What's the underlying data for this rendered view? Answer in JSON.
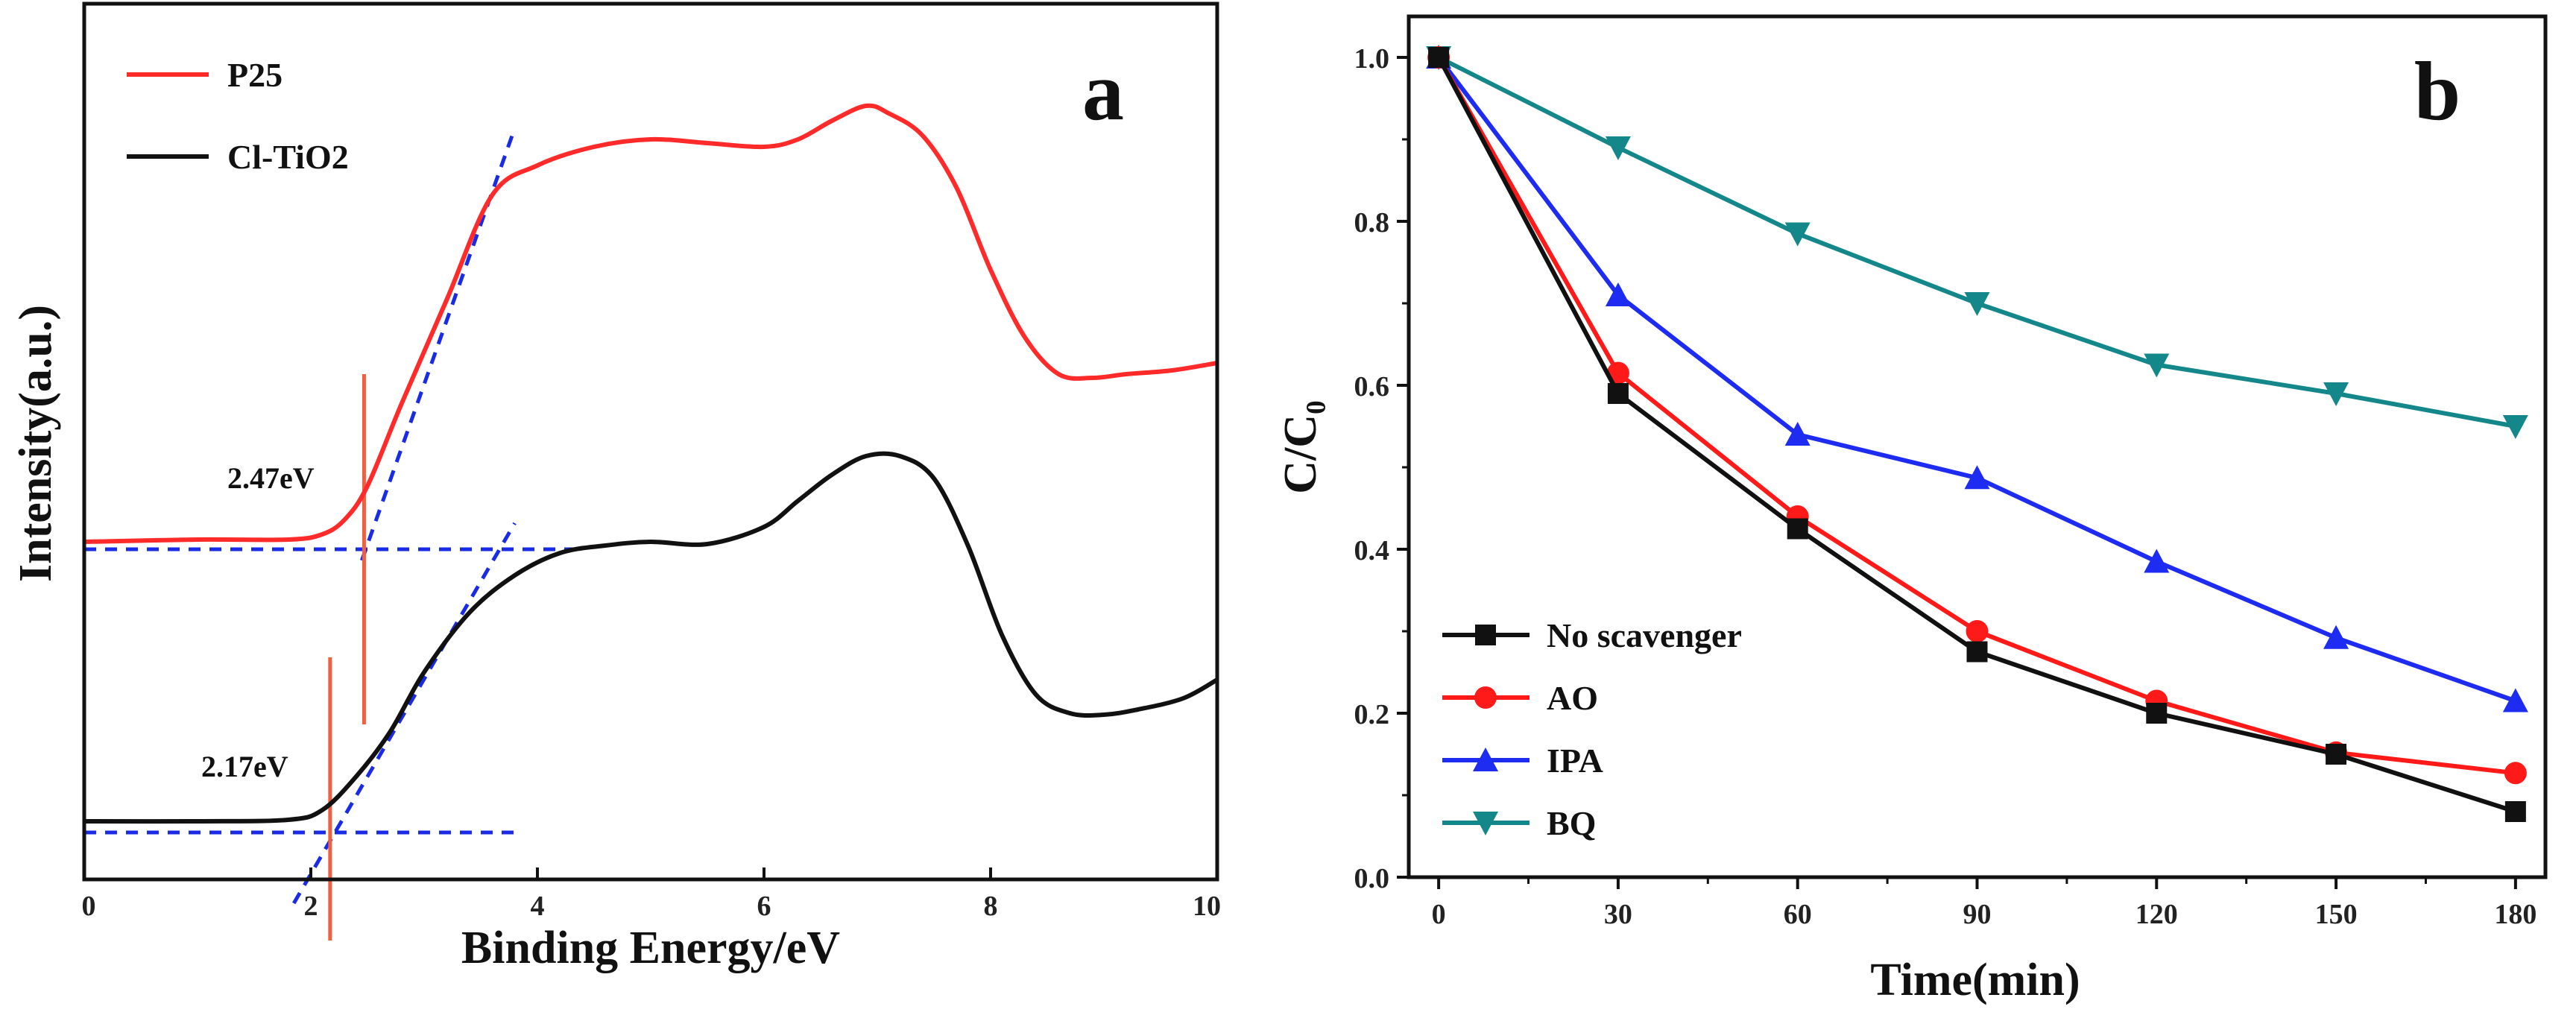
{
  "chart_data": [
    {
      "type": "line",
      "panel_label": "a",
      "title": "",
      "xlabel": "Binding Energy/eV",
      "ylabel": "Intensity(a.u.)",
      "xlim": [
        0,
        10
      ],
      "ylim": [
        0,
        100
      ],
      "xticks": [
        "0",
        "2",
        "4",
        "6",
        "8",
        "10"
      ],
      "y_ticks_shown": false,
      "legend": {
        "placement": "top-left"
      },
      "series": [
        {
          "name": "P25",
          "color": "#ff2a2a",
          "x": [
            0,
            1,
            1.8,
            2.1,
            2.3,
            2.5,
            2.8,
            3.2,
            3.6,
            4.0,
            4.5,
            5.0,
            5.5,
            6.0,
            6.3,
            6.6,
            6.9,
            7.1,
            7.4,
            7.7,
            8.0,
            8.3,
            8.6,
            8.9,
            9.2,
            9.6,
            10
          ],
          "y": [
            41.5,
            41.8,
            41.8,
            42.5,
            44.5,
            49,
            60,
            74,
            88,
            92,
            94.5,
            95.5,
            95,
            94.5,
            95.5,
            98,
            100,
            99,
            96,
            89,
            78,
            69,
            64,
            63.5,
            64,
            64.5,
            65.5
          ]
        },
        {
          "name": "Cl-TiO2",
          "color": "#111111",
          "x": [
            0,
            1,
            1.8,
            2.1,
            2.4,
            2.7,
            3.0,
            3.4,
            3.8,
            4.2,
            4.6,
            5.0,
            5.5,
            6.0,
            6.3,
            6.6,
            6.9,
            7.2,
            7.5,
            7.8,
            8.1,
            8.4,
            8.7,
            9.0,
            9.3,
            9.7,
            10
          ],
          "y": [
            4,
            4,
            4.2,
            5.5,
            10,
            16,
            24,
            32,
            37,
            40,
            41,
            41.5,
            41.2,
            43.5,
            47,
            50.5,
            53,
            53,
            50,
            41,
            29,
            21,
            18.5,
            18.3,
            19,
            20.5,
            23
          ]
        }
      ],
      "annotations": [
        {
          "text": "2.47eV",
          "x": 2.47
        },
        {
          "text": "2.17eV",
          "x": 2.17
        }
      ],
      "guide_lines": {
        "tangent_p25": [
          [
            2.45,
            39
          ],
          [
            3.8,
            97
          ]
        ],
        "baseline_p25": [
          [
            0,
            40.5
          ],
          [
            4.4,
            40.5
          ]
        ],
        "tangent_cl": [
          [
            1.85,
            -7
          ],
          [
            3.8,
            44
          ]
        ],
        "baseline_cl": [
          [
            0,
            2.5
          ],
          [
            3.8,
            2.5
          ]
        ],
        "vline_p25": {
          "x": 2.47,
          "y1": 17,
          "y2": 64
        },
        "vline_cl": {
          "x": 2.17,
          "y1": -12,
          "y2": 26
        },
        "color_tangent": "#1a2be6",
        "color_vline": "#f06040"
      }
    },
    {
      "type": "line",
      "panel_label": "b",
      "title": "",
      "xlabel": "Time(min)",
      "ylabel": "C/C₀",
      "xlim": [
        -5,
        185
      ],
      "ylim": [
        0,
        1.05
      ],
      "xticks": [
        "0",
        "30",
        "60",
        "90",
        "120",
        "150",
        "180"
      ],
      "yticks": [
        "0.0",
        "0.2",
        "0.4",
        "0.6",
        "0.8",
        "1.0"
      ],
      "legend": {
        "placement": "bottom-left"
      },
      "x": [
        0,
        30,
        60,
        90,
        120,
        150,
        180
      ],
      "series": [
        {
          "name": "No scavenger",
          "color": "#111111",
          "marker": "square",
          "values": [
            1.0,
            0.59,
            0.425,
            0.275,
            0.2,
            0.15,
            0.08
          ]
        },
        {
          "name": "AO",
          "color": "#ff1a1a",
          "marker": "circle",
          "values": [
            1.0,
            0.615,
            0.44,
            0.3,
            0.215,
            0.152,
            0.127
          ]
        },
        {
          "name": "IPA",
          "color": "#1e2bf0",
          "marker": "triangle-up",
          "values": [
            1.0,
            0.71,
            0.54,
            0.487,
            0.385,
            0.292,
            0.215
          ]
        },
        {
          "name": "BQ",
          "color": "#14878a",
          "marker": "triangle-down",
          "values": [
            1.0,
            0.89,
            0.785,
            0.7,
            0.625,
            0.59,
            0.55
          ]
        }
      ]
    }
  ]
}
